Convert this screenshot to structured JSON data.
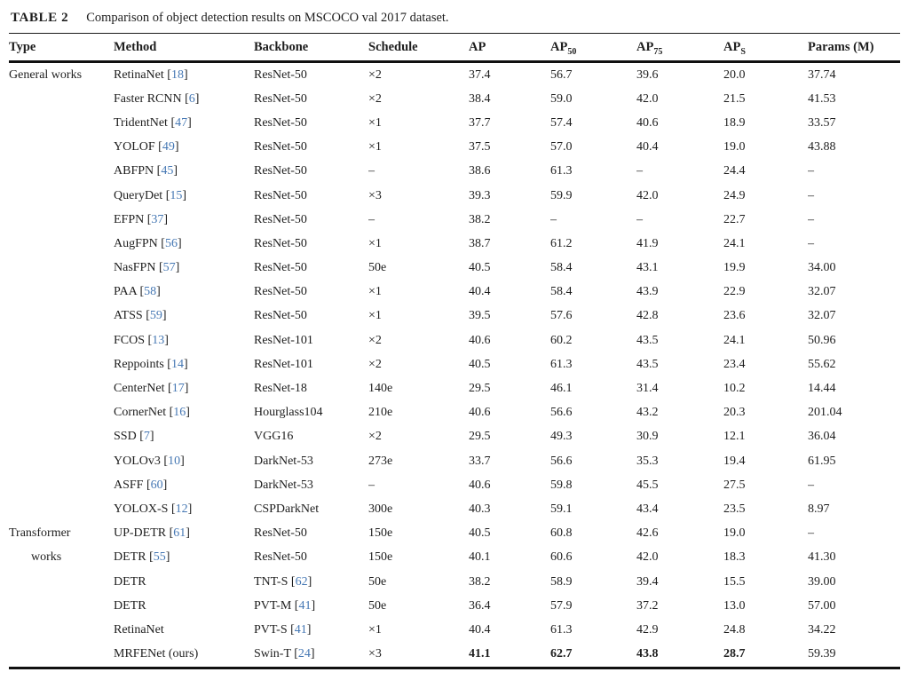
{
  "caption": {
    "label": "TABLE 2",
    "text": "Comparison of object detection results on MSCOCO val 2017 dataset."
  },
  "colors": {
    "citation_blue": "#4678b4",
    "text": "#1e1e1e",
    "rule": "#101010"
  },
  "table": {
    "columns": [
      {
        "label": "Type"
      },
      {
        "label": "Method"
      },
      {
        "label": "Backbone"
      },
      {
        "label": "Schedule"
      },
      {
        "label": "AP"
      },
      {
        "label": "AP",
        "sub": "50"
      },
      {
        "label": "AP",
        "sub": "75"
      },
      {
        "label": "AP",
        "sub": "S"
      },
      {
        "label": "Params (M)"
      }
    ],
    "rows": [
      {
        "type": "General works",
        "method": "RetinaNet",
        "method_cite": "18",
        "backbone": "ResNet-50",
        "schedule": "×2",
        "ap": "37.4",
        "ap50": "56.7",
        "ap75": "39.6",
        "aps": "20.0",
        "params": "37.74"
      },
      {
        "type": "",
        "method": "Faster RCNN",
        "method_cite": "6",
        "backbone": "ResNet-50",
        "schedule": "×2",
        "ap": "38.4",
        "ap50": "59.0",
        "ap75": "42.0",
        "aps": "21.5",
        "params": "41.53"
      },
      {
        "type": "",
        "method": "TridentNet",
        "method_cite": "47",
        "backbone": "ResNet-50",
        "schedule": "×1",
        "ap": "37.7",
        "ap50": "57.4",
        "ap75": "40.6",
        "aps": "18.9",
        "params": "33.57"
      },
      {
        "type": "",
        "method": "YOLOF",
        "method_cite": "49",
        "backbone": "ResNet-50",
        "schedule": "×1",
        "ap": "37.5",
        "ap50": "57.0",
        "ap75": "40.4",
        "aps": "19.0",
        "params": "43.88"
      },
      {
        "type": "",
        "method": "ABFPN",
        "method_cite": "45",
        "backbone": "ResNet-50",
        "schedule": "–",
        "ap": "38.6",
        "ap50": "61.3",
        "ap75": "–",
        "aps": "24.4",
        "params": "–"
      },
      {
        "type": "",
        "method": "QueryDet",
        "method_cite": "15",
        "backbone": "ResNet-50",
        "schedule": "×3",
        "ap": "39.3",
        "ap50": "59.9",
        "ap75": "42.0",
        "aps": "24.9",
        "params": "–"
      },
      {
        "type": "",
        "method": "EFPN",
        "method_cite": "37",
        "backbone": "ResNet-50",
        "schedule": "–",
        "ap": "38.2",
        "ap50": "–",
        "ap75": "–",
        "aps": "22.7",
        "params": "–"
      },
      {
        "type": "",
        "method": "AugFPN",
        "method_cite": "56",
        "backbone": "ResNet-50",
        "schedule": "×1",
        "ap": "38.7",
        "ap50": "61.2",
        "ap75": "41.9",
        "aps": "24.1",
        "params": "–"
      },
      {
        "type": "",
        "method": "NasFPN",
        "method_cite": "57",
        "backbone": "ResNet-50",
        "schedule": "50e",
        "ap": "40.5",
        "ap50": "58.4",
        "ap75": "43.1",
        "aps": "19.9",
        "params": "34.00"
      },
      {
        "type": "",
        "method": "PAA",
        "method_cite": "58",
        "backbone": "ResNet-50",
        "schedule": "×1",
        "ap": "40.4",
        "ap50": "58.4",
        "ap75": "43.9",
        "aps": "22.9",
        "params": "32.07"
      },
      {
        "type": "",
        "method": "ATSS",
        "method_cite": "59",
        "backbone": "ResNet-50",
        "schedule": "×1",
        "ap": "39.5",
        "ap50": "57.6",
        "ap75": "42.8",
        "aps": "23.6",
        "params": "32.07"
      },
      {
        "type": "",
        "method": "FCOS",
        "method_cite": "13",
        "backbone": "ResNet-101",
        "schedule": "×2",
        "ap": "40.6",
        "ap50": "60.2",
        "ap75": "43.5",
        "aps": "24.1",
        "params": "50.96"
      },
      {
        "type": "",
        "method": "Reppoints",
        "method_cite": "14",
        "backbone": "ResNet-101",
        "schedule": "×2",
        "ap": "40.5",
        "ap50": "61.3",
        "ap75": "43.5",
        "aps": "23.4",
        "params": "55.62"
      },
      {
        "type": "",
        "method": "CenterNet",
        "method_cite": "17",
        "backbone": "ResNet-18",
        "schedule": "140e",
        "ap": "29.5",
        "ap50": "46.1",
        "ap75": "31.4",
        "aps": "10.2",
        "params": "14.44"
      },
      {
        "type": "",
        "method": "CornerNet",
        "method_cite": "16",
        "backbone": "Hourglass104",
        "schedule": "210e",
        "ap": "40.6",
        "ap50": "56.6",
        "ap75": "43.2",
        "aps": "20.3",
        "params": "201.04"
      },
      {
        "type": "",
        "method": "SSD",
        "method_cite": "7",
        "backbone": "VGG16",
        "schedule": "×2",
        "ap": "29.5",
        "ap50": "49.3",
        "ap75": "30.9",
        "aps": "12.1",
        "params": "36.04"
      },
      {
        "type": "",
        "method": "YOLOv3",
        "method_cite": "10",
        "backbone": "DarkNet-53",
        "schedule": "273e",
        "ap": "33.7",
        "ap50": "56.6",
        "ap75": "35.3",
        "aps": "19.4",
        "params": "61.95"
      },
      {
        "type": "",
        "method": "ASFF",
        "method_cite": "60",
        "backbone": "DarkNet-53",
        "schedule": "–",
        "ap": "40.6",
        "ap50": "59.8",
        "ap75": "45.5",
        "aps": "27.5",
        "params": "–"
      },
      {
        "type": "",
        "method": "YOLOX-S",
        "method_cite": "12",
        "backbone": "CSPDarkNet",
        "schedule": "300e",
        "ap": "40.3",
        "ap50": "59.1",
        "ap75": "43.4",
        "aps": "23.5",
        "params": "8.97"
      },
      {
        "type": "Transformer",
        "method": "UP-DETR",
        "method_cite": "61",
        "backbone": "ResNet-50",
        "schedule": "150e",
        "ap": "40.5",
        "ap50": "60.8",
        "ap75": "42.6",
        "aps": "19.0",
        "params": "–"
      },
      {
        "type": "works",
        "type_indent": true,
        "method": "DETR",
        "method_cite": "55",
        "backbone": "ResNet-50",
        "schedule": "150e",
        "ap": "40.1",
        "ap50": "60.6",
        "ap75": "42.0",
        "aps": "18.3",
        "params": "41.30"
      },
      {
        "type": "",
        "method": "DETR",
        "backbone": "TNT-S",
        "backbone_cite": "62",
        "schedule": "50e",
        "ap": "38.2",
        "ap50": "58.9",
        "ap75": "39.4",
        "aps": "15.5",
        "params": "39.00"
      },
      {
        "type": "",
        "method": "DETR",
        "backbone": "PVT-M",
        "backbone_cite": "41",
        "schedule": "50e",
        "ap": "36.4",
        "ap50": "57.9",
        "ap75": "37.2",
        "aps": "13.0",
        "params": "57.00"
      },
      {
        "type": "",
        "method": "RetinaNet",
        "backbone": "PVT-S",
        "backbone_cite": "41",
        "schedule": "×1",
        "ap": "40.4",
        "ap50": "61.3",
        "ap75": "42.9",
        "aps": "24.8",
        "params": "34.22"
      },
      {
        "type": "",
        "method": "MRFENet (ours)",
        "backbone": "Swin-T",
        "backbone_cite": "24",
        "schedule": "×3",
        "ap": "41.1",
        "ap50": "62.7",
        "ap75": "43.8",
        "aps": "28.7",
        "params": "59.39",
        "bold": [
          "ap",
          "ap50",
          "ap75",
          "aps"
        ]
      }
    ]
  }
}
